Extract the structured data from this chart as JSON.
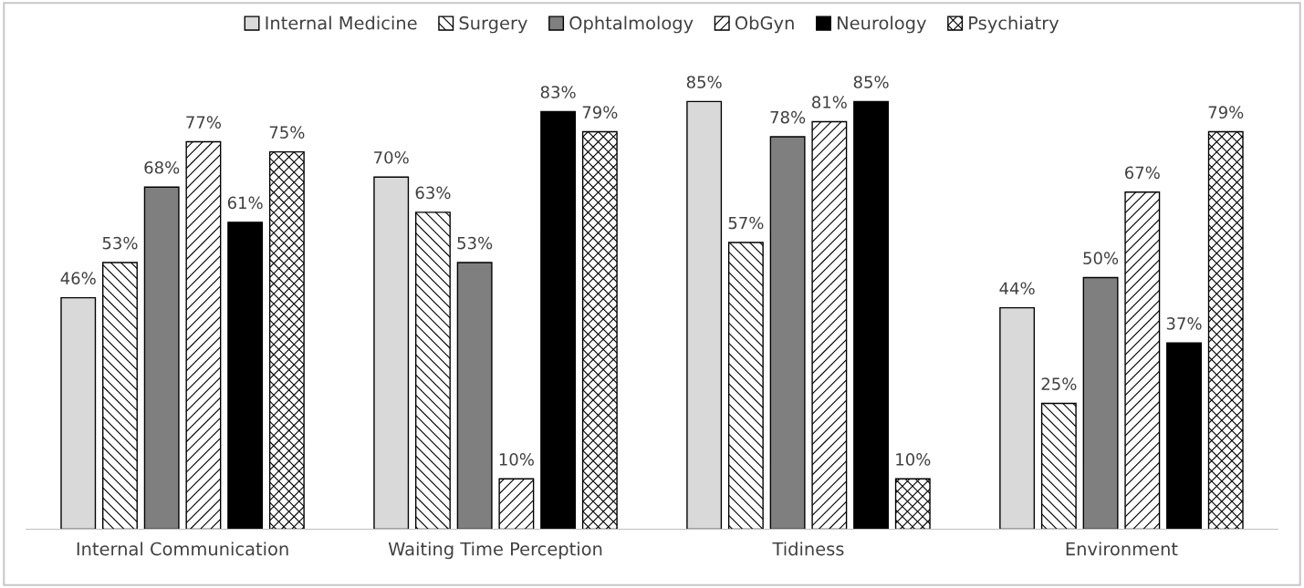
{
  "chart_data": {
    "type": "bar",
    "categories": [
      "Internal Communication",
      "Waiting Time Perception",
      "Tidiness",
      "Environment"
    ],
    "series": [
      {
        "name": "Internal Medicine",
        "color": "#d9d9d9",
        "values": [
          46,
          70,
          85,
          44
        ],
        "value_labels": [
          "46%",
          "70%",
          "85%",
          "44%"
        ]
      },
      {
        "name": "Surgery",
        "color": "#000000",
        "values": [
          53,
          63,
          57,
          25
        ],
        "value_labels": [
          "53%",
          "63%",
          "57%",
          "25%"
        ]
      },
      {
        "name": "Ophtalmology",
        "color": "#7f7f7f",
        "values": [
          68,
          53,
          78,
          50
        ],
        "value_labels": [
          "68%",
          "53%",
          "78%",
          "50%"
        ]
      },
      {
        "name": "ObGyn",
        "color": "#000000",
        "values": [
          77,
          10,
          81,
          67
        ],
        "value_labels": [
          "77%",
          "10%",
          "81%",
          "67%"
        ]
      },
      {
        "name": "Neurology",
        "color": "#000000",
        "values": [
          61,
          83,
          85,
          37
        ],
        "value_labels": [
          "61%",
          "83%",
          "85%",
          "37%"
        ]
      },
      {
        "name": "Psychiatry",
        "color": "#000000",
        "values": [
          75,
          79,
          10,
          79
        ],
        "value_labels": [
          "75%",
          "79%",
          "10%",
          "79%"
        ]
      }
    ],
    "legend": "top",
    "grid": false,
    "tick_labels": "x"
  }
}
